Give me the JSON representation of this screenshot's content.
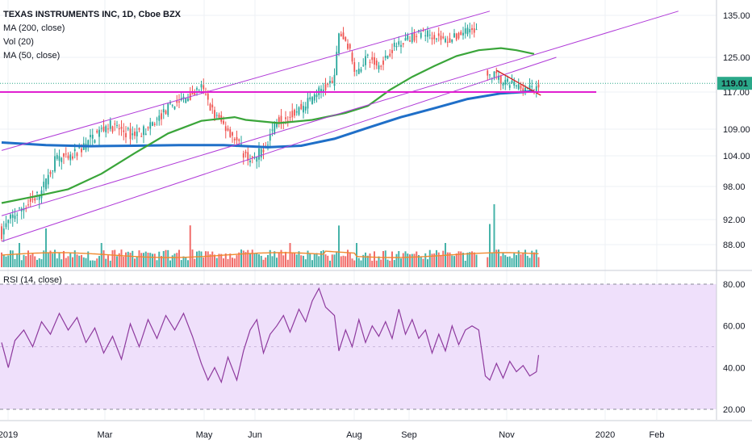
{
  "legend": {
    "title": "TEXAS INSTRUMENTS INC, 1D, Cboe BZX",
    "ma200": "MA (200, close)",
    "vol": "Vol (20)",
    "ma50": "MA (50, close)",
    "rsi": "RSI (14, close)"
  },
  "colors": {
    "up": "#26a69a",
    "down": "#ef5350",
    "ma50": "#3aa53a",
    "ma200": "#1f6fc8",
    "vol_ma": "#f08a30",
    "trend_purple": "#b03ad8",
    "support_magenta": "#e020d0",
    "triangle_red": "#d42020",
    "rsi_line": "#8e3a9e",
    "rsi_band": "#efe0fb",
    "last_price_bg": "#2aa889"
  },
  "chart_data": {
    "type": "candlestick",
    "price_axis": [
      "135.00",
      "125.00",
      "117.00",
      "109.00",
      "104.00",
      "98.00",
      "92.00",
      "88.00"
    ],
    "last_price": "119.01",
    "support_level": 117.0,
    "x_labels": [
      "2019",
      "Mar",
      "May",
      "Jun",
      "Aug",
      "Sep",
      "Nov",
      "2020",
      "Feb"
    ],
    "rsi_axis": [
      "80.00",
      "60.00",
      "40.00",
      "20.00"
    ],
    "rsi_band": [
      20,
      80
    ],
    "ma50_points": [
      [
        0,
        95.0
      ],
      [
        15,
        96.2
      ],
      [
        30,
        97.5
      ],
      [
        45,
        100.5
      ],
      [
        60,
        104.5
      ],
      [
        75,
        108.2
      ],
      [
        90,
        110.8
      ],
      [
        105,
        111.6
      ],
      [
        110,
        111.0
      ],
      [
        125,
        110.3
      ],
      [
        140,
        111.0
      ],
      [
        155,
        112.5
      ],
      [
        165,
        114.0
      ],
      [
        175,
        117.5
      ],
      [
        185,
        120.5
      ],
      [
        195,
        123.0
      ],
      [
        205,
        125.3
      ],
      [
        215,
        126.7
      ],
      [
        225,
        127.2
      ],
      [
        232,
        126.7
      ],
      [
        240,
        125.8
      ]
    ],
    "ma200_points": [
      [
        0,
        106.5
      ],
      [
        20,
        106.0
      ],
      [
        40,
        105.8
      ],
      [
        60,
        105.9
      ],
      [
        80,
        106.0
      ],
      [
        100,
        106.0
      ],
      [
        120,
        105.6
      ],
      [
        135,
        105.9
      ],
      [
        150,
        107.2
      ],
      [
        165,
        109.3
      ],
      [
        180,
        111.6
      ],
      [
        195,
        113.5
      ],
      [
        210,
        115.5
      ],
      [
        225,
        116.7
      ],
      [
        235,
        117.0
      ],
      [
        240,
        117.2
      ]
    ],
    "trend_lines": [
      {
        "name": "channel_upper",
        "from": [
          0,
          105.0
        ],
        "to": [
          220,
          136.0
        ]
      },
      {
        "name": "channel_mid",
        "from": [
          0,
          92.7
        ],
        "to": [
          305,
          136.0
        ]
      },
      {
        "name": "channel_lower",
        "from": [
          0,
          88.5
        ],
        "to": [
          250,
          125.0
        ]
      },
      {
        "name": "triangle_top",
        "from": [
          223,
          122.0
        ],
        "to": [
          243,
          116.3
        ]
      }
    ],
    "rsi_points": [
      [
        0,
        52
      ],
      [
        3,
        40
      ],
      [
        6,
        53
      ],
      [
        10,
        58
      ],
      [
        14,
        50
      ],
      [
        18,
        62
      ],
      [
        22,
        56
      ],
      [
        26,
        66
      ],
      [
        30,
        58
      ],
      [
        34,
        64
      ],
      [
        38,
        52
      ],
      [
        42,
        59
      ],
      [
        46,
        47
      ],
      [
        50,
        55
      ],
      [
        54,
        44
      ],
      [
        58,
        61
      ],
      [
        62,
        50
      ],
      [
        66,
        63
      ],
      [
        70,
        54
      ],
      [
        74,
        65
      ],
      [
        78,
        58
      ],
      [
        82,
        66
      ],
      [
        86,
        55
      ],
      [
        90,
        42
      ],
      [
        93,
        34
      ],
      [
        96,
        40
      ],
      [
        99,
        33
      ],
      [
        102,
        45
      ],
      [
        106,
        34
      ],
      [
        109,
        48
      ],
      [
        112,
        58
      ],
      [
        115,
        63
      ],
      [
        118,
        47
      ],
      [
        121,
        56
      ],
      [
        124,
        60
      ],
      [
        127,
        65
      ],
      [
        130,
        57
      ],
      [
        134,
        68
      ],
      [
        137,
        62
      ],
      [
        140,
        72
      ],
      [
        143,
        78
      ],
      [
        146,
        69
      ],
      [
        150,
        65
      ],
      [
        152,
        48
      ],
      [
        155,
        58
      ],
      [
        158,
        50
      ],
      [
        161,
        63
      ],
      [
        164,
        52
      ],
      [
        167,
        60
      ],
      [
        170,
        55
      ],
      [
        173,
        62
      ],
      [
        176,
        54
      ],
      [
        179,
        68
      ],
      [
        182,
        56
      ],
      [
        185,
        63
      ],
      [
        188,
        54
      ],
      [
        191,
        58
      ],
      [
        194,
        47
      ],
      [
        197,
        56
      ],
      [
        200,
        48
      ],
      [
        203,
        60
      ],
      [
        206,
        51
      ],
      [
        209,
        58
      ],
      [
        212,
        60
      ],
      [
        215,
        58
      ],
      [
        218,
        36
      ],
      [
        220,
        34
      ],
      [
        223,
        42
      ],
      [
        226,
        35
      ],
      [
        229,
        43
      ],
      [
        232,
        38
      ],
      [
        235,
        41
      ],
      [
        238,
        36
      ],
      [
        241,
        38
      ],
      [
        242,
        46
      ]
    ]
  }
}
